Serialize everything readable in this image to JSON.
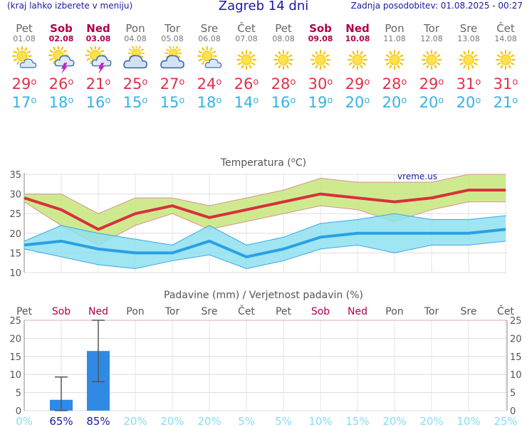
{
  "header": {
    "menu_hint": "(kraj lahko izberete v meniju)",
    "title": "Zagreb 14 dni",
    "updated": "Zadnja posodobitev: 01.08.2025 - 00:27"
  },
  "days": [
    {
      "name": "Pet",
      "date": "01.08",
      "weekend": false,
      "icon": "sun-cloud-icon",
      "tmax": "29",
      "tmin": "17"
    },
    {
      "name": "Sob",
      "date": "02.08",
      "weekend": true,
      "icon": "thunderstorm-icon",
      "tmax": "26",
      "tmin": "18"
    },
    {
      "name": "Ned",
      "date": "03.08",
      "weekend": true,
      "icon": "thunderstorm-icon",
      "tmax": "21",
      "tmin": "16"
    },
    {
      "name": "Pon",
      "date": "04.08",
      "weekend": false,
      "icon": "cloudy-sun-icon",
      "tmax": "25",
      "tmin": "15"
    },
    {
      "name": "Tor",
      "date": "05.08",
      "weekend": false,
      "icon": "cloudy-sun-icon",
      "tmax": "27",
      "tmin": "15"
    },
    {
      "name": "Sre",
      "date": "06.08",
      "weekend": false,
      "icon": "sun-cloud-icon",
      "tmax": "24",
      "tmin": "18"
    },
    {
      "name": "Čet",
      "date": "07.08",
      "weekend": false,
      "icon": "sun-icon",
      "tmax": "26",
      "tmin": "14"
    },
    {
      "name": "Pet",
      "date": "08.08",
      "weekend": false,
      "icon": "sun-icon",
      "tmax": "28",
      "tmin": "16"
    },
    {
      "name": "Sob",
      "date": "09.08",
      "weekend": true,
      "icon": "sun-icon",
      "tmax": "30",
      "tmin": "19"
    },
    {
      "name": "Ned",
      "date": "10.08",
      "weekend": true,
      "icon": "sun-icon",
      "tmax": "29",
      "tmin": "20"
    },
    {
      "name": "Pon",
      "date": "11.08",
      "weekend": false,
      "icon": "sun-icon",
      "tmax": "28",
      "tmin": "20"
    },
    {
      "name": "Tor",
      "date": "12.08",
      "weekend": false,
      "icon": "sun-icon",
      "tmax": "29",
      "tmin": "20"
    },
    {
      "name": "Sre",
      "date": "13.08",
      "weekend": false,
      "icon": "sun-icon",
      "tmax": "31",
      "tmin": "20"
    },
    {
      "name": "Čet",
      "date": "14.08",
      "weekend": false,
      "icon": "sun-icon",
      "tmax": "31",
      "tmin": "21"
    }
  ],
  "chart_data": [
    {
      "type": "line",
      "title": "Temperatura (°C)",
      "watermark": "vreme.us",
      "ylim": [
        10,
        35
      ],
      "yticks": [
        10,
        15,
        20,
        25,
        30,
        35
      ],
      "grid": true,
      "series": [
        {
          "key": "tmax",
          "color": "#d8303e",
          "values": [
            29,
            26,
            21,
            25,
            27,
            24,
            26,
            28,
            30,
            29,
            28,
            29,
            31,
            31
          ]
        },
        {
          "key": "tmax_upper",
          "color": "#c7e67a",
          "values": [
            30,
            30,
            25,
            29,
            29,
            27,
            29,
            31,
            34,
            33,
            33,
            33,
            35,
            35
          ]
        },
        {
          "key": "tmax_lower",
          "color": "#c7e67a",
          "values": [
            28,
            22,
            17,
            22,
            25,
            21,
            23,
            25,
            27,
            26,
            23,
            26,
            28,
            28
          ]
        },
        {
          "key": "tmin",
          "color": "#2aa0e4",
          "values": [
            17,
            18,
            16,
            15,
            15,
            18,
            14,
            16,
            19,
            20,
            20,
            20,
            20,
            21
          ]
        },
        {
          "key": "tmin_upper",
          "color": "#8fe0f0",
          "values": [
            18,
            22,
            20,
            18.5,
            17,
            22,
            17,
            19,
            22.5,
            23.5,
            25,
            23.5,
            23.5,
            24.5
          ]
        },
        {
          "key": "tmin_lower",
          "color": "#8fe0f0",
          "values": [
            16,
            14,
            12,
            11,
            13,
            14.5,
            11,
            13,
            16,
            17,
            15,
            17,
            17,
            18
          ]
        }
      ]
    },
    {
      "type": "bar",
      "title": "Padavine (mm) / Verjetnost padavin (%)",
      "ylim": [
        0,
        25
      ],
      "yticks": [
        0,
        5,
        10,
        15,
        20,
        25
      ],
      "grid": true,
      "categories": [
        "Pet",
        "Sob",
        "Ned",
        "Pon",
        "Tor",
        "Sre",
        "Čet",
        "Pet",
        "Sob",
        "Ned",
        "Pon",
        "Tor",
        "Sre",
        "Čet"
      ],
      "category_weekend": [
        false,
        true,
        true,
        false,
        false,
        false,
        false,
        false,
        true,
        true,
        false,
        false,
        false,
        false
      ],
      "values": [
        0,
        3,
        16.5,
        0,
        0,
        0,
        0,
        0,
        0,
        0,
        0,
        0,
        0,
        0
      ],
      "error_low": [
        0,
        0,
        8,
        0,
        0,
        0,
        0,
        0,
        0,
        0,
        0,
        0,
        0,
        0
      ],
      "error_high": [
        0,
        9.3,
        26,
        0,
        0,
        0,
        0,
        0,
        0,
        0,
        0,
        0,
        0,
        0
      ],
      "probability_labels": [
        "0%",
        "65%",
        "85%",
        "20%",
        "20%",
        "20%",
        "5%",
        "5%",
        "10%",
        "15%",
        "20%",
        "20%",
        "10%",
        "25%"
      ],
      "colors": {
        "bar": "#2f8ae6",
        "prob_high": "#1a1aa6",
        "prob_low": "#86dcf5",
        "weekend": "#b0004c"
      }
    }
  ]
}
